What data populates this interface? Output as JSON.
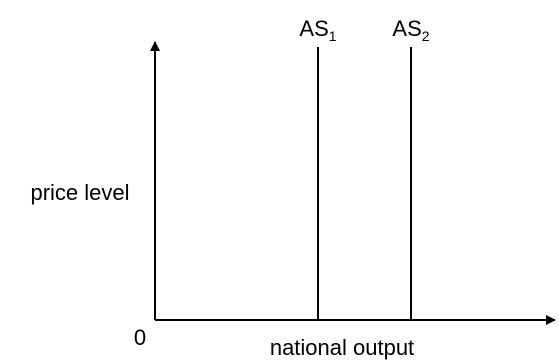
{
  "diagram": {
    "y_axis_label": "price level",
    "x_axis_label": "national output",
    "origin_label": "0",
    "curves": [
      {
        "base": "AS",
        "subscript": "1"
      },
      {
        "base": "AS",
        "subscript": "2"
      }
    ],
    "line_color": "#000000"
  }
}
